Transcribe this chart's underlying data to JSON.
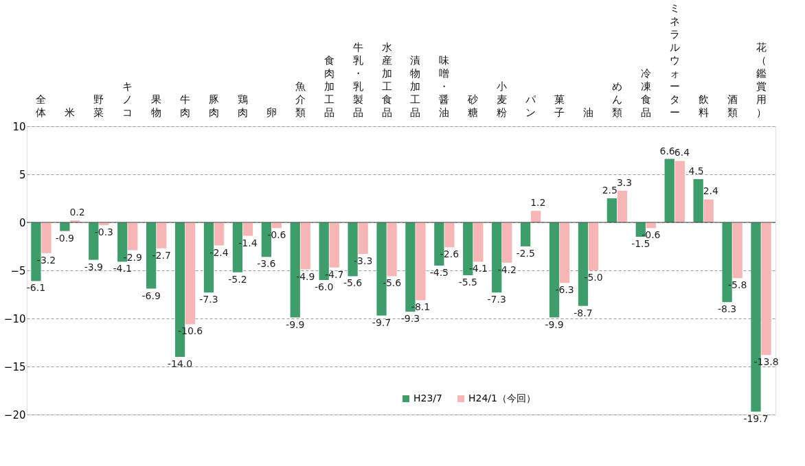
{
  "chart_data": {
    "type": "bar",
    "categories": [
      "全体",
      "米",
      "野菜",
      "キノコ",
      "果物",
      "牛肉",
      "豚肉",
      "鶏肉",
      "卵",
      "魚介類",
      "食肉加工品",
      "牛乳・乳製品",
      "水産加工食品",
      "漬物加工品",
      "味噌・醤油",
      "砂糖",
      "小麦粉",
      "パン",
      "菓子",
      "油",
      "めん類",
      "冷凍食品",
      "ミネラルウォーター",
      "飲料",
      "酒類",
      "花（鑑賞用）"
    ],
    "series": [
      {
        "name": "H23/7",
        "color": "#3f9c6b",
        "values": [
          -6.1,
          -0.9,
          -3.9,
          -4.1,
          -6.9,
          -14.0,
          -7.3,
          -5.2,
          -3.6,
          -9.9,
          -6.0,
          -5.6,
          -9.7,
          -9.3,
          -4.5,
          -5.5,
          -7.3,
          -2.5,
          -9.9,
          -8.7,
          2.5,
          -1.5,
          6.6,
          4.5,
          -8.3,
          -19.7
        ],
        "value_labels": [
          "-6.1",
          "-0.9",
          "-3.9",
          "-4.1",
          "-6.9",
          "-14.0",
          "-7.3",
          "-5.2",
          "-3.6",
          "-9.9",
          "-6.0",
          "-5.6",
          "-9.7",
          "-9.3",
          "-4.5",
          "-5.5",
          "-7.3",
          "-2.5",
          "-9.9",
          "-8.7",
          "2.5",
          "-1.5",
          "6.6",
          "4.5",
          "-8.3",
          "-19.7"
        ]
      },
      {
        "name": "H24/1（今回）",
        "color": "#f6b6b6",
        "values": [
          -3.2,
          0.2,
          -0.3,
          -2.9,
          -2.7,
          -10.6,
          -2.4,
          -1.4,
          -0.6,
          -4.9,
          -4.7,
          -3.3,
          -5.6,
          -8.1,
          -2.6,
          -4.1,
          -4.2,
          1.2,
          -6.3,
          -5.0,
          3.3,
          -0.6,
          6.4,
          2.4,
          -5.8,
          -13.8
        ],
        "value_labels": [
          "-3.2",
          "0.2",
          "-0.3",
          "-2.9",
          "-2.7",
          "-10.6",
          "-2.4",
          "-1.4",
          "-0.6",
          "-4.9",
          "-4.7",
          "-3.3",
          "-5.6",
          "-8.1",
          "-2.6",
          "-4.1",
          "-4.2",
          "1.2",
          "-6.3",
          "-5.0",
          "3.3",
          "-0.6",
          "6.4",
          "2.4",
          "-5.8",
          "-13.8"
        ]
      }
    ],
    "ylim": [
      -20,
      10
    ],
    "yticks": [
      10,
      5,
      0,
      -5,
      -10,
      -15,
      -20
    ],
    "grid": "y",
    "legend": "bottom"
  }
}
